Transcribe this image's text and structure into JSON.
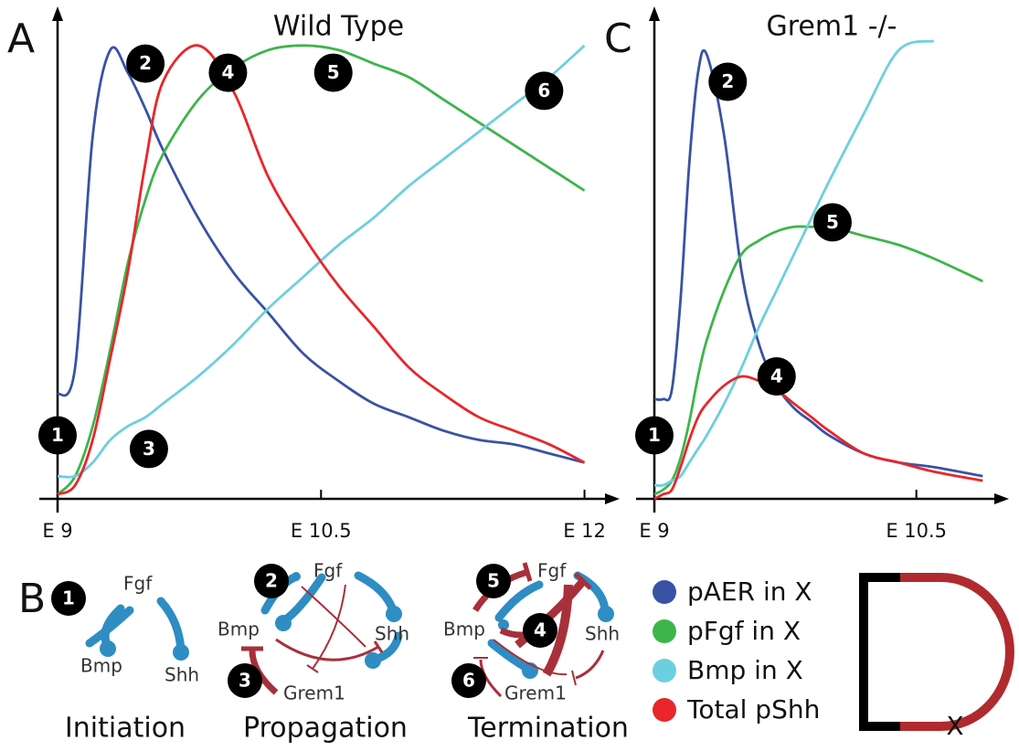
{
  "chart_data": [
    {
      "type": "line",
      "label": "A",
      "title": "Wild Type",
      "x": [
        9,
        9.1,
        9.2,
        9.3,
        9.4,
        9.5,
        9.6,
        9.8,
        10,
        10.2,
        10.4,
        10.6,
        10.8,
        11,
        11.2,
        11.4,
        11.6,
        11.8,
        12
      ],
      "xlim": [
        9,
        12.2
      ],
      "ylim": [
        0,
        1.05
      ],
      "xticks": [
        {
          "value": 9,
          "label": "E 9"
        },
        {
          "value": 10.5,
          "label": "E 10.5"
        },
        {
          "value": 12,
          "label": "E 12"
        }
      ],
      "series": [
        {
          "name": "pAER in X",
          "color": "#3a52a4",
          "values": [
            0.23,
            0.29,
            0.8,
            0.99,
            0.94,
            0.86,
            0.77,
            0.62,
            0.5,
            0.41,
            0.32,
            0.26,
            0.21,
            0.18,
            0.15,
            0.13,
            0.12,
            0.1,
            0.08
          ]
        },
        {
          "name": "pFgf in X",
          "color": "#3db54a",
          "values": [
            0.01,
            0.05,
            0.16,
            0.33,
            0.52,
            0.66,
            0.76,
            0.88,
            0.95,
            0.99,
            1.0,
            0.99,
            0.96,
            0.93,
            0.88,
            0.83,
            0.78,
            0.73,
            0.68
          ]
        },
        {
          "name": "Bmp in X",
          "color": "#6ccfe0",
          "values": [
            0.05,
            0.05,
            0.08,
            0.13,
            0.16,
            0.18,
            0.21,
            0.27,
            0.34,
            0.42,
            0.49,
            0.56,
            0.62,
            0.69,
            0.75,
            0.81,
            0.87,
            0.93,
            1.0
          ]
        },
        {
          "name": "Total pShh",
          "color": "#e8262b",
          "values": [
            0.01,
            0.03,
            0.13,
            0.31,
            0.5,
            0.74,
            0.92,
            1.0,
            0.9,
            0.71,
            0.58,
            0.47,
            0.38,
            0.29,
            0.23,
            0.18,
            0.15,
            0.12,
            0.08
          ]
        }
      ],
      "markers": [
        {
          "label": "1",
          "x": 9,
          "y": 0.14
        },
        {
          "label": "2",
          "x": 9.5,
          "y": 0.96
        },
        {
          "label": "3",
          "x": 9.52,
          "y": 0.11
        },
        {
          "label": "4",
          "x": 9.97,
          "y": 0.94
        },
        {
          "label": "5",
          "x": 10.57,
          "y": 0.94
        },
        {
          "label": "6",
          "x": 11.77,
          "y": 0.9
        }
      ]
    },
    {
      "type": "line",
      "label": "C",
      "title": "Grem1 -/-",
      "x": [
        9,
        9.05,
        9.1,
        9.15,
        9.2,
        9.25,
        9.3,
        9.4,
        9.5,
        9.6,
        9.7,
        9.8,
        9.9,
        10,
        10.2,
        10.4,
        10.6,
        10.88
      ],
      "xlim": [
        9,
        11.03
      ],
      "ylim": [
        0,
        1.05
      ],
      "xticks": [
        {
          "value": 9,
          "label": "E 9"
        },
        {
          "value": 10.5,
          "label": "E 10.5"
        }
      ],
      "series": [
        {
          "color": "#3a52a4",
          "values": [
            0.22,
            0.22,
            0.24,
            0.44,
            0.74,
            0.94,
            0.98,
            0.8,
            0.5,
            0.34,
            0.25,
            0.2,
            0.17,
            0.14,
            0.1,
            0.08,
            0.07,
            0.05
          ]
        },
        {
          "color": "#3db54a",
          "values": [
            0.01,
            0.02,
            0.04,
            0.09,
            0.17,
            0.27,
            0.35,
            0.46,
            0.54,
            0.57,
            0.59,
            0.6,
            0.6,
            0.6,
            0.58,
            0.56,
            0.53,
            0.48
          ]
        },
        {
          "color": "#6ccfe0",
          "values": [
            0.03,
            0.03,
            0.04,
            0.05,
            0.08,
            0.11,
            0.14,
            0.21,
            0.29,
            0.38,
            0.46,
            0.54,
            0.62,
            0.7,
            0.85,
            0.99,
            1.01,
            null
          ]
        },
        {
          "color": "#e8262b",
          "values": [
            0,
            0.01,
            0.02,
            0.07,
            0.13,
            0.18,
            0.21,
            0.25,
            0.27,
            0.26,
            0.24,
            0.21,
            0.18,
            0.15,
            0.1,
            0.08,
            0.06,
            0.04
          ]
        }
      ],
      "markers": [
        {
          "label": "1",
          "x": 9,
          "y": 0.14
        },
        {
          "label": "2",
          "x": 9.42,
          "y": 0.92
        },
        {
          "label": "4",
          "x": 9.7,
          "y": 0.27
        },
        {
          "label": "5",
          "x": 10.02,
          "y": 0.61
        }
      ]
    }
  ],
  "diagram": {
    "label": "B",
    "panels": [
      {
        "title": "Initiation",
        "markers": [
          "1"
        ],
        "nodes": [
          "Fgf",
          "Bmp",
          "Shh"
        ]
      },
      {
        "title": "Propagation",
        "markers": [
          "2",
          "3"
        ],
        "nodes": [
          "Fgf",
          "Bmp",
          "Shh",
          "Grem1"
        ]
      },
      {
        "title": "Termination",
        "markers": [
          "5",
          "4",
          "6"
        ],
        "nodes": [
          "Fgf",
          "Bmp",
          "Shh",
          "Grem1"
        ]
      }
    ],
    "schematic_label": "X"
  }
}
